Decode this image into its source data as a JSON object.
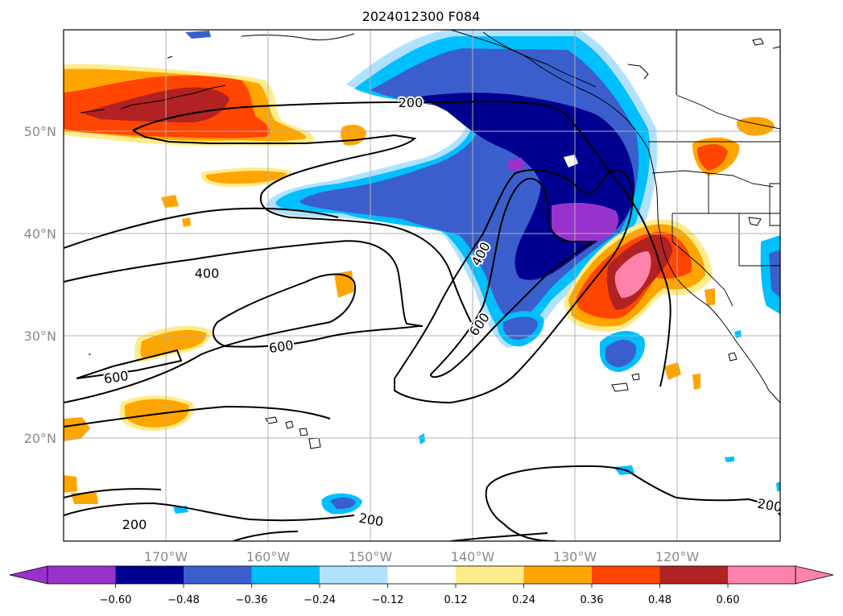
{
  "title": "2024012300 F084",
  "lon_ticks": [
    "170°W",
    "160°W",
    "150°W",
    "140°W",
    "130°W",
    "120°W"
  ],
  "lat_ticks": [
    "50°N",
    "40°N",
    "30°N",
    "20°N"
  ],
  "colorbar": {
    "extend": "both",
    "tick_labels": [
      "−0.60",
      "−0.48",
      "−0.36",
      "−0.24",
      "−0.12",
      "0.12",
      "0.24",
      "0.36",
      "0.48",
      "0.60"
    ],
    "colors": [
      "#9932cc",
      "#000090",
      "#3a5fcd",
      "#00bfff",
      "#b0e2ff",
      "#ffffff",
      "#ffec8b",
      "#ffa500",
      "#ff4500",
      "#b22222",
      "#ff82ab"
    ]
  },
  "contour_labels": [
    "200",
    "400",
    "400",
    "600",
    "600",
    "600",
    "200",
    "200",
    "200"
  ]
}
